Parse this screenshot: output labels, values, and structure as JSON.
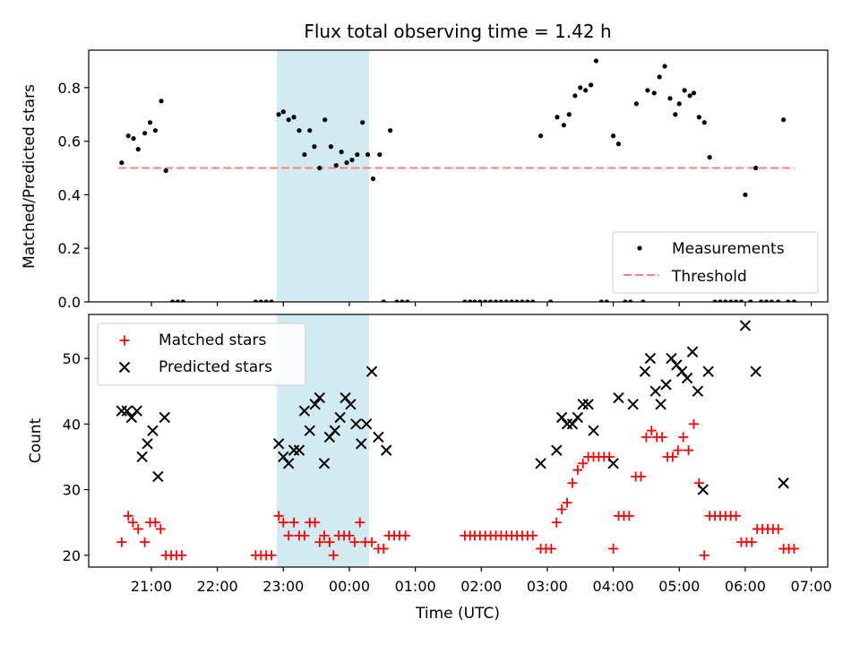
{
  "title": "Flux total observing time = 1.42 h",
  "colors": {
    "measure": "#000000",
    "threshold": "#ff7f7f",
    "matched": "#ff0000",
    "predicted": "#000000",
    "shade": "#add8e6"
  },
  "chart_data": [
    {
      "type": "scatter",
      "ylabel": "Matched/Predicted stars",
      "ylim": [
        0,
        0.94
      ],
      "yticks": [
        "0.0",
        "0.2",
        "0.4",
        "0.6",
        "0.8"
      ],
      "xlim": [
        20.05,
        31.25
      ],
      "shaded_span": [
        22.9,
        24.3
      ],
      "legend": {
        "placement": "lower-right",
        "measurements": "Measurements",
        "threshold": "Threshold"
      },
      "threshold": {
        "value": 0.5,
        "x_range": [
          20.5,
          30.75
        ]
      },
      "measurements": [
        [
          20.55,
          0.52
        ],
        [
          20.65,
          0.62
        ],
        [
          20.73,
          0.61
        ],
        [
          20.8,
          0.57
        ],
        [
          20.9,
          0.63
        ],
        [
          20.98,
          0.67
        ],
        [
          21.06,
          0.64
        ],
        [
          21.15,
          0.75
        ],
        [
          21.22,
          0.49
        ],
        [
          21.32,
          0
        ],
        [
          21.4,
          0
        ],
        [
          21.48,
          0
        ],
        [
          22.58,
          0
        ],
        [
          22.66,
          0
        ],
        [
          22.74,
          0
        ],
        [
          22.82,
          0
        ],
        [
          22.93,
          0.7
        ],
        [
          23.0,
          0.71
        ],
        [
          23.08,
          0.68
        ],
        [
          23.16,
          0.69
        ],
        [
          23.24,
          0.64
        ],
        [
          23.32,
          0.55
        ],
        [
          23.4,
          0.64
        ],
        [
          23.47,
          0.58
        ],
        [
          23.55,
          0.5
        ],
        [
          23.63,
          0.68
        ],
        [
          23.72,
          0.58
        ],
        [
          23.8,
          0.51
        ],
        [
          23.88,
          0.56
        ],
        [
          23.96,
          0.52
        ],
        [
          24.04,
          0.53
        ],
        [
          24.12,
          0.55
        ],
        [
          24.2,
          0.67
        ],
        [
          24.28,
          0.55
        ],
        [
          24.36,
          0.46
        ],
        [
          24.46,
          0.55
        ],
        [
          24.52,
          0
        ],
        [
          24.62,
          0.64
        ],
        [
          24.72,
          0
        ],
        [
          24.8,
          0
        ],
        [
          24.88,
          0
        ],
        [
          25.75,
          0
        ],
        [
          25.83,
          0
        ],
        [
          25.9,
          0
        ],
        [
          25.98,
          0
        ],
        [
          26.06,
          0
        ],
        [
          26.14,
          0
        ],
        [
          26.22,
          0
        ],
        [
          26.3,
          0
        ],
        [
          26.38,
          0
        ],
        [
          26.46,
          0
        ],
        [
          26.54,
          0
        ],
        [
          26.62,
          0
        ],
        [
          26.7,
          0
        ],
        [
          26.78,
          0
        ],
        [
          26.9,
          0.62
        ],
        [
          27.05,
          0
        ],
        [
          27.15,
          0.69
        ],
        [
          27.25,
          0.66
        ],
        [
          27.33,
          0.7
        ],
        [
          27.42,
          0.77
        ],
        [
          27.5,
          0.8
        ],
        [
          27.58,
          0.79
        ],
        [
          27.66,
          0.81
        ],
        [
          27.74,
          0.9
        ],
        [
          27.82,
          0
        ],
        [
          27.9,
          0
        ],
        [
          28.0,
          0.62
        ],
        [
          28.08,
          0.59
        ],
        [
          28.18,
          0
        ],
        [
          28.26,
          0
        ],
        [
          28.35,
          0.74
        ],
        [
          28.45,
          0
        ],
        [
          28.52,
          0.79
        ],
        [
          28.62,
          0.78
        ],
        [
          28.7,
          0.84
        ],
        [
          28.78,
          0.88
        ],
        [
          28.86,
          0.76
        ],
        [
          28.94,
          0.7
        ],
        [
          29.0,
          0.74
        ],
        [
          29.08,
          0.79
        ],
        [
          29.16,
          0.77
        ],
        [
          29.22,
          0.78
        ],
        [
          29.3,
          0.69
        ],
        [
          29.38,
          0.67
        ],
        [
          29.46,
          0.54
        ],
        [
          29.54,
          0
        ],
        [
          29.62,
          0
        ],
        [
          29.7,
          0
        ],
        [
          29.78,
          0
        ],
        [
          29.86,
          0
        ],
        [
          29.94,
          0
        ],
        [
          30.0,
          0.4
        ],
        [
          30.08,
          0
        ],
        [
          30.16,
          0.5
        ],
        [
          30.24,
          0
        ],
        [
          30.32,
          0
        ],
        [
          30.4,
          0
        ],
        [
          30.5,
          0
        ],
        [
          30.58,
          0.68
        ],
        [
          30.65,
          0
        ],
        [
          30.74,
          0
        ]
      ]
    },
    {
      "type": "scatter",
      "xlabel": "Time (UTC)",
      "ylabel": "Count",
      "ylim": [
        18.2,
        56.7
      ],
      "yticks": [
        "20",
        "30",
        "40",
        "50"
      ],
      "xlim": [
        20.05,
        31.25
      ],
      "xticks": [
        "21:00",
        "22:00",
        "23:00",
        "00:00",
        "01:00",
        "02:00",
        "03:00",
        "04:00",
        "05:00",
        "06:00",
        "07:00"
      ],
      "shaded_span": [
        22.9,
        24.3
      ],
      "legend": {
        "placement": "upper-left",
        "matched": "Matched stars",
        "predicted": "Predicted stars"
      },
      "matched": [
        [
          20.55,
          22
        ],
        [
          20.65,
          26
        ],
        [
          20.72,
          25
        ],
        [
          20.8,
          24
        ],
        [
          20.9,
          22
        ],
        [
          20.98,
          25
        ],
        [
          21.06,
          25
        ],
        [
          21.14,
          24
        ],
        [
          21.22,
          20
        ],
        [
          21.3,
          20
        ],
        [
          21.38,
          20
        ],
        [
          21.46,
          20
        ],
        [
          22.58,
          20
        ],
        [
          22.66,
          20
        ],
        [
          22.74,
          20
        ],
        [
          22.82,
          20
        ],
        [
          22.93,
          26
        ],
        [
          23.0,
          25
        ],
        [
          23.08,
          23
        ],
        [
          23.16,
          25
        ],
        [
          23.24,
          23
        ],
        [
          23.32,
          23
        ],
        [
          23.4,
          25
        ],
        [
          23.48,
          25
        ],
        [
          23.55,
          22
        ],
        [
          23.62,
          23
        ],
        [
          23.7,
          22
        ],
        [
          23.76,
          20
        ],
        [
          23.84,
          23
        ],
        [
          23.92,
          23
        ],
        [
          24.0,
          23
        ],
        [
          24.08,
          22
        ],
        [
          24.16,
          25
        ],
        [
          24.24,
          22
        ],
        [
          24.34,
          22
        ],
        [
          24.44,
          21
        ],
        [
          24.52,
          21
        ],
        [
          24.6,
          23
        ],
        [
          24.68,
          23
        ],
        [
          24.76,
          23
        ],
        [
          24.85,
          23
        ],
        [
          25.75,
          23
        ],
        [
          25.83,
          23
        ],
        [
          25.9,
          23
        ],
        [
          25.98,
          23
        ],
        [
          26.06,
          23
        ],
        [
          26.14,
          23
        ],
        [
          26.22,
          23
        ],
        [
          26.3,
          23
        ],
        [
          26.38,
          23
        ],
        [
          26.46,
          23
        ],
        [
          26.54,
          23
        ],
        [
          26.62,
          23
        ],
        [
          26.7,
          23
        ],
        [
          26.78,
          23
        ],
        [
          26.9,
          21
        ],
        [
          26.98,
          21
        ],
        [
          27.06,
          21
        ],
        [
          27.14,
          25
        ],
        [
          27.22,
          27
        ],
        [
          27.3,
          28
        ],
        [
          27.38,
          31
        ],
        [
          27.46,
          33
        ],
        [
          27.54,
          34
        ],
        [
          27.62,
          35
        ],
        [
          27.7,
          35
        ],
        [
          27.78,
          35
        ],
        [
          27.86,
          35
        ],
        [
          27.94,
          35
        ],
        [
          28.0,
          21
        ],
        [
          28.08,
          26
        ],
        [
          28.16,
          26
        ],
        [
          28.24,
          26
        ],
        [
          28.34,
          32
        ],
        [
          28.42,
          32
        ],
        [
          28.5,
          38
        ],
        [
          28.58,
          39
        ],
        [
          28.66,
          38
        ],
        [
          28.74,
          38
        ],
        [
          28.82,
          35
        ],
        [
          28.9,
          35
        ],
        [
          28.98,
          36
        ],
        [
          29.06,
          38
        ],
        [
          29.14,
          36
        ],
        [
          29.22,
          40
        ],
        [
          29.3,
          31
        ],
        [
          29.38,
          20
        ],
        [
          29.46,
          26
        ],
        [
          29.54,
          26
        ],
        [
          29.62,
          26
        ],
        [
          29.7,
          26
        ],
        [
          29.78,
          26
        ],
        [
          29.86,
          26
        ],
        [
          29.94,
          22
        ],
        [
          30.02,
          22
        ],
        [
          30.1,
          22
        ],
        [
          30.18,
          24
        ],
        [
          30.26,
          24
        ],
        [
          30.34,
          24
        ],
        [
          30.42,
          24
        ],
        [
          30.5,
          24
        ],
        [
          30.58,
          21
        ],
        [
          30.66,
          21
        ],
        [
          30.74,
          21
        ]
      ],
      "predicted": [
        [
          20.55,
          42
        ],
        [
          20.63,
          42
        ],
        [
          20.7,
          41
        ],
        [
          20.78,
          42
        ],
        [
          20.86,
          35
        ],
        [
          20.94,
          37
        ],
        [
          21.02,
          39
        ],
        [
          21.1,
          32
        ],
        [
          21.2,
          41
        ],
        [
          22.93,
          37
        ],
        [
          23.0,
          35
        ],
        [
          23.08,
          34
        ],
        [
          23.16,
          36
        ],
        [
          23.24,
          36
        ],
        [
          23.32,
          42
        ],
        [
          23.4,
          39
        ],
        [
          23.48,
          43
        ],
        [
          23.55,
          44
        ],
        [
          23.62,
          34
        ],
        [
          23.7,
          38
        ],
        [
          23.78,
          39
        ],
        [
          23.86,
          41
        ],
        [
          23.94,
          44
        ],
        [
          24.02,
          43
        ],
        [
          24.1,
          40
        ],
        [
          24.18,
          37
        ],
        [
          24.26,
          40
        ],
        [
          24.34,
          48
        ],
        [
          24.44,
          38
        ],
        [
          24.56,
          36
        ],
        [
          26.9,
          34
        ],
        [
          27.14,
          36
        ],
        [
          27.22,
          41
        ],
        [
          27.3,
          40
        ],
        [
          27.38,
          40
        ],
        [
          27.46,
          41
        ],
        [
          27.54,
          43
        ],
        [
          27.62,
          43
        ],
        [
          27.7,
          39
        ],
        [
          28.0,
          34
        ],
        [
          28.08,
          44
        ],
        [
          28.3,
          43
        ],
        [
          28.48,
          48
        ],
        [
          28.56,
          50
        ],
        [
          28.64,
          45
        ],
        [
          28.72,
          43
        ],
        [
          28.8,
          46
        ],
        [
          28.88,
          50
        ],
        [
          28.96,
          49
        ],
        [
          29.04,
          48
        ],
        [
          29.12,
          47
        ],
        [
          29.2,
          51
        ],
        [
          29.28,
          45
        ],
        [
          29.36,
          30
        ],
        [
          29.44,
          48
        ],
        [
          30.0,
          55
        ],
        [
          30.16,
          48
        ],
        [
          30.58,
          31
        ]
      ]
    }
  ]
}
